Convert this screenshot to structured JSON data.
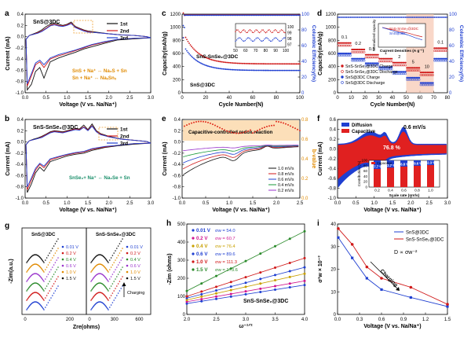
{
  "chart_data": [
    {
      "id": "a",
      "panel_label": "a",
      "type": "line",
      "annotation": "SnS@3DC",
      "xlabel": "Voltage (V vs. Na/Na⁺)",
      "ylabel": "Current (mA)",
      "xlim": [
        0,
        3.0
      ],
      "ylim": [
        -1.0,
        0.4
      ],
      "xticks": [
        0.0,
        0.5,
        1.0,
        1.5,
        2.0,
        2.5,
        3.0
      ],
      "yticks": [
        -1.0,
        -0.8,
        -0.6,
        -0.4,
        -0.2,
        0.0,
        0.2,
        0.4
      ],
      "legend": [
        "1st",
        "2nd",
        "3rd"
      ],
      "reactions": [
        "SnS + Na⁺ ↔ Na₂S + Sn",
        "Sn + Na⁺ ↔ NaₓSnₓ"
      ],
      "series": [
        {
          "name": "1st",
          "color": "#111111",
          "x": [
            0.02,
            0.1,
            0.2,
            0.3,
            0.4,
            0.5,
            0.6,
            0.7,
            0.8,
            0.9,
            1.0,
            1.1,
            1.2,
            1.3,
            1.4,
            1.5,
            1.7,
            2.0,
            2.3,
            2.6,
            2.9,
            3.0,
            2.6,
            2.2,
            1.9,
            1.6,
            1.4,
            1.2,
            1.0,
            0.8,
            0.6,
            0.45,
            0.35,
            0.25,
            0.15,
            0.05,
            0.02
          ],
          "y": [
            -0.05,
            0.02,
            0.05,
            0.08,
            0.12,
            0.18,
            0.22,
            0.24,
            0.22,
            0.2,
            0.22,
            0.26,
            0.18,
            0.15,
            0.12,
            0.1,
            0.08,
            0.05,
            0.03,
            0.02,
            0.0,
            -0.02,
            -0.04,
            -0.06,
            -0.12,
            -0.18,
            -0.22,
            -0.28,
            -0.33,
            -0.38,
            -0.45,
            -0.74,
            -0.55,
            -0.62,
            -0.85,
            -0.95,
            -0.05
          ]
        },
        {
          "name": "2nd",
          "color": "#d01919",
          "x": [
            0.02,
            0.1,
            0.2,
            0.3,
            0.4,
            0.5,
            0.6,
            0.7,
            0.8,
            0.9,
            1.0,
            1.1,
            1.2,
            1.3,
            1.4,
            1.5,
            1.7,
            2.0,
            2.3,
            2.6,
            2.9,
            3.0,
            2.6,
            2.2,
            1.9,
            1.6,
            1.4,
            1.2,
            1.0,
            0.8,
            0.6,
            0.45,
            0.35,
            0.25,
            0.15,
            0.05,
            0.02
          ],
          "y": [
            -0.05,
            0.02,
            0.04,
            0.07,
            0.1,
            0.15,
            0.2,
            0.22,
            0.2,
            0.19,
            0.21,
            0.24,
            0.17,
            0.14,
            0.11,
            0.09,
            0.07,
            0.05,
            0.03,
            0.02,
            0.0,
            -0.02,
            -0.03,
            -0.05,
            -0.1,
            -0.15,
            -0.2,
            -0.25,
            -0.3,
            -0.34,
            -0.4,
            -0.55,
            -0.45,
            -0.5,
            -0.7,
            -0.88,
            -0.05
          ]
        },
        {
          "name": "3rd",
          "color": "#1f3fd1",
          "x": [
            0.02,
            0.1,
            0.2,
            0.3,
            0.4,
            0.5,
            0.6,
            0.7,
            0.8,
            0.9,
            1.0,
            1.1,
            1.2,
            1.3,
            1.4,
            1.5,
            1.7,
            2.0,
            2.3,
            2.6,
            2.9,
            3.0,
            2.6,
            2.2,
            1.9,
            1.6,
            1.4,
            1.2,
            1.0,
            0.8,
            0.6,
            0.45,
            0.35,
            0.25,
            0.15,
            0.05,
            0.02
          ],
          "y": [
            -0.05,
            0.02,
            0.04,
            0.06,
            0.09,
            0.14,
            0.19,
            0.21,
            0.19,
            0.18,
            0.2,
            0.23,
            0.16,
            0.13,
            0.1,
            0.08,
            0.07,
            0.05,
            0.03,
            0.02,
            0.0,
            -0.02,
            -0.03,
            -0.05,
            -0.09,
            -0.14,
            -0.19,
            -0.24,
            -0.28,
            -0.32,
            -0.38,
            -0.5,
            -0.42,
            -0.47,
            -0.66,
            -0.84,
            -0.05
          ]
        }
      ]
    },
    {
      "id": "b",
      "panel_label": "b",
      "type": "line",
      "annotation": "SnS-SnSe₂@3DC",
      "xlabel": "Voltage (V vs. Na/Na⁺)",
      "ylabel": "Current (mA)",
      "xlim": [
        0,
        3.0
      ],
      "ylim": [
        -1.0,
        0.4
      ],
      "xticks": [
        0.0,
        0.5,
        1.0,
        1.5,
        2.0,
        2.5,
        3.0
      ],
      "yticks": [
        -1.0,
        -0.8,
        -0.6,
        -0.4,
        -0.2,
        0.0,
        0.2,
        0.4
      ],
      "legend": [
        "1st",
        "2nd",
        "3rd"
      ],
      "reactions": [
        "SnSe₂+ Na⁺ ↔ Na₂Se + Sn"
      ],
      "series": [
        {
          "name": "1st",
          "color": "#111111",
          "x": [
            0.02,
            0.1,
            0.2,
            0.3,
            0.4,
            0.5,
            0.6,
            0.7,
            0.8,
            0.9,
            1.0,
            1.1,
            1.2,
            1.3,
            1.4,
            1.5,
            1.6,
            1.7,
            1.8,
            2.0,
            2.3,
            2.6,
            2.9,
            3.0,
            2.6,
            2.2,
            1.9,
            1.6,
            1.4,
            1.2,
            1.0,
            0.8,
            0.6,
            0.45,
            0.35,
            0.25,
            0.15,
            0.05,
            0.02
          ],
          "y": [
            -0.05,
            0.02,
            0.05,
            0.07,
            0.1,
            0.14,
            0.18,
            0.2,
            0.19,
            0.18,
            0.2,
            0.22,
            0.24,
            0.23,
            0.3,
            0.22,
            0.32,
            0.2,
            0.15,
            0.1,
            0.05,
            0.03,
            0.01,
            -0.02,
            -0.04,
            -0.07,
            -0.1,
            -0.15,
            -0.2,
            -0.22,
            -0.25,
            -0.3,
            -0.35,
            -0.52,
            -0.45,
            -0.55,
            -0.75,
            -0.9,
            -0.05
          ]
        },
        {
          "name": "2nd",
          "color": "#d01919",
          "x": [
            0.02,
            0.1,
            0.2,
            0.3,
            0.4,
            0.5,
            0.6,
            0.7,
            0.8,
            0.9,
            1.0,
            1.1,
            1.2,
            1.3,
            1.4,
            1.5,
            1.6,
            1.7,
            1.8,
            2.0,
            2.3,
            2.6,
            2.9,
            3.0,
            2.6,
            2.2,
            1.9,
            1.6,
            1.4,
            1.2,
            1.0,
            0.8,
            0.6,
            0.45,
            0.35,
            0.25,
            0.15,
            0.05,
            0.02
          ],
          "y": [
            -0.05,
            0.02,
            0.04,
            0.06,
            0.09,
            0.13,
            0.17,
            0.19,
            0.18,
            0.17,
            0.19,
            0.21,
            0.23,
            0.22,
            0.27,
            0.21,
            0.29,
            0.19,
            0.14,
            0.09,
            0.05,
            0.03,
            0.01,
            -0.02,
            -0.03,
            -0.06,
            -0.09,
            -0.13,
            -0.18,
            -0.2,
            -0.23,
            -0.27,
            -0.32,
            -0.46,
            -0.4,
            -0.5,
            -0.68,
            -0.85,
            -0.05
          ]
        },
        {
          "name": "3rd",
          "color": "#1f3fd1",
          "x": [
            0.02,
            0.1,
            0.2,
            0.3,
            0.4,
            0.5,
            0.6,
            0.7,
            0.8,
            0.9,
            1.0,
            1.1,
            1.2,
            1.3,
            1.4,
            1.5,
            1.6,
            1.7,
            1.8,
            2.0,
            2.3,
            2.6,
            2.9,
            3.0,
            2.6,
            2.2,
            1.9,
            1.6,
            1.4,
            1.2,
            1.0,
            0.8,
            0.6,
            0.45,
            0.35,
            0.25,
            0.15,
            0.05,
            0.02
          ],
          "y": [
            -0.05,
            0.02,
            0.04,
            0.06,
            0.08,
            0.12,
            0.16,
            0.18,
            0.17,
            0.16,
            0.18,
            0.2,
            0.22,
            0.21,
            0.26,
            0.2,
            0.28,
            0.18,
            0.13,
            0.09,
            0.05,
            0.03,
            0.01,
            -0.02,
            -0.03,
            -0.06,
            -0.08,
            -0.12,
            -0.17,
            -0.19,
            -0.22,
            -0.26,
            -0.3,
            -0.43,
            -0.38,
            -0.47,
            -0.64,
            -0.8,
            -0.05
          ]
        }
      ]
    },
    {
      "id": "c",
      "panel_label": "c",
      "type": "scatter",
      "xlabel": "Cycle Number(N)",
      "ylabel": "Capacity(mAh/g)",
      "y2label": "Columbic Efficiency(%)",
      "xlim": [
        0,
        100
      ],
      "ylim": [
        0,
        1200
      ],
      "y2lim": [
        0,
        100
      ],
      "xticks": [
        0,
        20,
        40,
        60,
        80,
        100
      ],
      "yticks": [
        0,
        200,
        400,
        600,
        800,
        1000,
        1200
      ],
      "y2ticks": [
        0,
        20,
        40,
        60,
        80,
        100
      ],
      "labels": [
        "SnS-SnSe₂@3DC",
        "SnS@3DC"
      ],
      "inset": {
        "yticks": [
          97,
          98,
          99,
          100
        ],
        "xticks": [
          50,
          60,
          70,
          80,
          90,
          100
        ]
      },
      "series": [
        {
          "name": "SnS-SnSe₂@3DC",
          "color": "#d01919",
          "axis": "y",
          "start": 960,
          "end": 440
        },
        {
          "name": "SnS@3DC",
          "color": "#1f3fd1",
          "axis": "y",
          "start": 760,
          "end": 340
        },
        {
          "name": "CE SnS-SnSe₂@3DC",
          "color": "#d01919",
          "axis": "y2",
          "value": 99
        },
        {
          "name": "CE SnS@3DC",
          "color": "#1f3fd1",
          "axis": "y2",
          "value": 98.6
        }
      ]
    },
    {
      "id": "d",
      "panel_label": "d",
      "type": "scatter",
      "xlabel": "Cycle Number(N)",
      "ylabel": "Capacity(mAh/g)",
      "y2label": "Columbic Efficiency(%)",
      "xlim": [
        0,
        80
      ],
      "ylim": [
        0,
        1200
      ],
      "y2lim": [
        0,
        100
      ],
      "xticks": [
        0,
        10,
        20,
        30,
        40,
        50,
        60,
        70,
        80
      ],
      "yticks": [
        0,
        200,
        400,
        600,
        800,
        1000,
        1200
      ],
      "y2ticks": [
        0,
        20,
        40,
        60,
        80,
        100
      ],
      "rate_labels": [
        "0.1",
        "0.2",
        "0.5",
        "1",
        "2",
        "5",
        "10",
        "0.1"
      ],
      "legend": [
        "SnS-SnSe₂@3DC Charge",
        "SnS-SnSe₂@3DC Discharge",
        "SnS@3DC Charge",
        "SnS@3DC Discharge"
      ],
      "inset": {
        "xlabel": "Current Densities (A g⁻¹)",
        "ylabel": "Normalized capacity",
        "legend": [
          "SnS-SnSe₂@3DC",
          "SnS@3DC"
        ],
        "xticks": [
          "0.1",
          "0.2",
          "0.5",
          "1",
          "2",
          "5",
          "10"
        ]
      },
      "rate_steps": [
        {
          "rate": "0.1",
          "x0": 0,
          "x1": 10,
          "red": 720,
          "blue": 600
        },
        {
          "rate": "0.2",
          "x0": 10,
          "x1": 20,
          "red": 620,
          "blue": 520
        },
        {
          "rate": "0.5",
          "x0": 20,
          "x1": 30,
          "red": 540,
          "blue": 450
        },
        {
          "rate": "1",
          "x0": 30,
          "x1": 40,
          "red": 480,
          "blue": 390
        },
        {
          "rate": "2",
          "x0": 40,
          "x1": 50,
          "red": 420,
          "blue": 320
        },
        {
          "rate": "5",
          "x0": 50,
          "x1": 60,
          "red": 340,
          "blue": 230
        },
        {
          "rate": "10",
          "x0": 60,
          "x1": 70,
          "red": 270,
          "blue": 150
        },
        {
          "rate": "0.1",
          "x0": 70,
          "x1": 80,
          "red": 640,
          "blue": 520
        }
      ]
    },
    {
      "id": "e",
      "panel_label": "e",
      "type": "line",
      "xlabel": "Voltage (V vs. Na/Na⁺)",
      "ylabel": "Current (mA)",
      "y2label": "b-value",
      "xlim": [
        0,
        2.5
      ],
      "ylim": [
        -1.0,
        0.4
      ],
      "y2lim": [
        0.0,
        0.8
      ],
      "xticks": [
        0.0,
        0.5,
        1.0,
        1.5,
        2.0,
        2.5
      ],
      "yticks": [
        -1.0,
        -0.8,
        -0.6,
        -0.4,
        -0.2,
        0.0,
        0.2,
        0.4
      ],
      "y2ticks": [
        0.0,
        0.2,
        0.4,
        0.6,
        0.8
      ],
      "annotation": "Capacitive-controlled redox reaction",
      "legend": [
        "1.0 mV/s",
        "0.8 mV/s",
        "0.6 mV/s",
        "0.4 mV/s",
        "0.2 mV/s"
      ],
      "scan_rates": [
        1.0,
        0.8,
        0.6,
        0.4,
        0.2
      ],
      "colors": [
        "#111111",
        "#d01919",
        "#1f3fd1",
        "#1a9a3a",
        "#9933cc"
      ]
    },
    {
      "id": "f",
      "panel_label": "f",
      "type": "area",
      "xlabel": "Voltage (V vs. Na/Na⁺)",
      "ylabel": "Current (mA)",
      "xlim": [
        0,
        3.0
      ],
      "ylim": [
        -1.0,
        0.6
      ],
      "xticks": [
        0.0,
        0.5,
        1.0,
        1.5,
        2.0,
        2.5,
        3.0
      ],
      "yticks": [
        -1.0,
        -0.8,
        -0.6,
        -0.4,
        -0.2,
        0.0,
        0.2,
        0.4,
        0.6
      ],
      "legend": [
        "Diffusion",
        "Capacitive"
      ],
      "scan_rate_label": "0.6 mV/s",
      "center_label": "76.8 %",
      "inset": {
        "type": "bar",
        "xlabel": "Scale rate (mV/s)",
        "ylabel": "Contribution (%)",
        "legend": [
          "Capacitive"
        ],
        "categories": [
          "0.2",
          "0.4",
          "0.6",
          "0.8",
          "1.0"
        ],
        "values": [
          67.7,
          72.7,
          76.8,
          79.6,
          82.3
        ],
        "value_labels": [
          "67.7 %",
          "72.7 %",
          "76.8 %",
          "79.6 %",
          "82.3 %"
        ],
        "yticks": [
          0,
          20,
          40,
          60,
          80,
          100
        ]
      }
    },
    {
      "id": "g",
      "panel_label": "g",
      "type": "line",
      "xlabel": "Zre(ohms)",
      "ylabel": "-Zim(a.u.)",
      "left_title": "SnS@3DC",
      "right_title": "SnS-SnSe₂@3DC",
      "xticks_left": [
        0,
        200
      ],
      "xticks_right": [
        0,
        300,
        600
      ],
      "legend": [
        "0.01 V",
        "0.2 V",
        "0.4 V",
        "0.6 V",
        "1.0 V",
        "1.5 V"
      ],
      "arrow_label": "Charging",
      "colors": [
        "#1f3fd1",
        "#d01919",
        "#2a8a2a",
        "#9933cc",
        "#e08a00",
        "#111111"
      ]
    },
    {
      "id": "h",
      "panel_label": "h",
      "type": "scatter",
      "xlabel": "ω⁻¹ᐟ²",
      "ylabel": "-Zim (ohms)",
      "xlim": [
        2.0,
        4.0
      ],
      "ylim": [
        0,
        500
      ],
      "xticks": [
        2.0,
        2.5,
        3.0,
        3.5,
        4.0
      ],
      "yticks": [
        0,
        100,
        200,
        300,
        400,
        500
      ],
      "annotation": "SnS-SnSe₂@3DC",
      "series": [
        {
          "name": "0.01 V",
          "sigma_label": "σw = 54.0",
          "color": "#1f3fd1",
          "sigma": 54.0,
          "y0": 60
        },
        {
          "name": "0.2 V",
          "sigma_label": "σw = 60.7",
          "color": "#d0148f",
          "sigma": 60.7,
          "y0": 70
        },
        {
          "name": "0.4 V",
          "sigma_label": "σw = 76.4",
          "color": "#c8a000",
          "sigma": 76.4,
          "y0": 80
        },
        {
          "name": "0.6 V",
          "sigma_label": "σw = 89.6",
          "color": "#1f3fd1",
          "sigma": 89.6,
          "y0": 90
        },
        {
          "name": "1.0 V",
          "sigma_label": "σw = 111.3",
          "color": "#d01919",
          "sigma": 111.3,
          "y0": 100
        },
        {
          "name": "1.5 V",
          "sigma_label": "σw = 173.6",
          "color": "#2a8a2a",
          "sigma": 173.6,
          "y0": 130
        }
      ]
    },
    {
      "id": "i",
      "panel_label": "i",
      "type": "line",
      "xlabel": "Voltage (V vs. Na/Na⁺)",
      "ylabel": "σ²w × 10⁻³",
      "xlim": [
        0,
        1.5
      ],
      "ylim": [
        0,
        40
      ],
      "xticks": [
        0.0,
        0.3,
        0.6,
        0.9,
        1.2,
        1.5
      ],
      "yticks": [
        0,
        10,
        20,
        30,
        40
      ],
      "formula": "D ∝ σw⁻²",
      "arrow_label": "Charging",
      "series": [
        {
          "name": "SnS@3DC",
          "color": "#1f3fd1",
          "x": [
            0.01,
            0.2,
            0.4,
            0.6,
            1.0,
            1.5
          ],
          "y": [
            34,
            25,
            16,
            11,
            7.5,
            3.5
          ]
        },
        {
          "name": "SnS-SnSe₂@3DC",
          "color": "#d01919",
          "x": [
            0.01,
            0.2,
            0.4,
            0.6,
            1.0,
            1.5
          ],
          "y": [
            38,
            31,
            21,
            16,
            12,
            4.5
          ]
        }
      ]
    }
  ]
}
